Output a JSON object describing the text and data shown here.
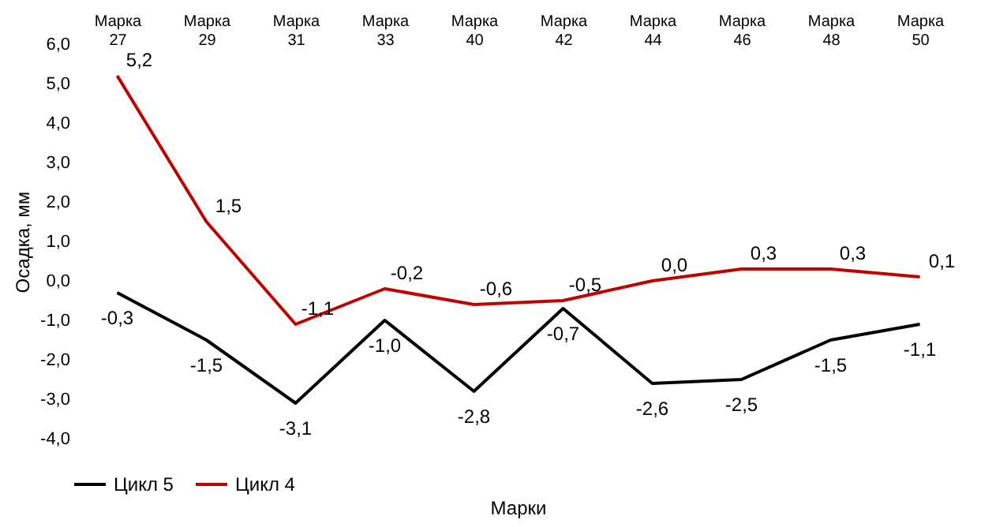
{
  "chart_data": {
    "type": "line",
    "xlabel": "Марки",
    "ylabel": "Осадка, мм",
    "categories": [
      "Марка 27",
      "Марка 29",
      "Марка 31",
      "Марка 33",
      "Марка 40",
      "Марка 42",
      "Марка 44",
      "Марка 46",
      "Марка 48",
      "Марка 50"
    ],
    "series": [
      {
        "name": "Цикл 5",
        "color": "#000000",
        "values": [
          -0.3,
          -1.5,
          -3.1,
          -1.0,
          -2.8,
          -0.7,
          -2.6,
          -2.5,
          -1.5,
          -1.1
        ],
        "value_labels": [
          "-0,3",
          "-1,5",
          "-3,1",
          "-1,0",
          "-2,8",
          "-0,7",
          "-2,6",
          "-2,5",
          "-1,5",
          "-1,1"
        ]
      },
      {
        "name": "Цикл 4",
        "color": "#c00000",
        "values": [
          5.2,
          1.5,
          -1.1,
          -0.2,
          -0.6,
          -0.5,
          0.0,
          0.3,
          0.3,
          0.1
        ],
        "value_labels": [
          "5,2",
          "1,5",
          "-1,1",
          "-0,2",
          "-0,6",
          "-0,5",
          "0,0",
          "0,3",
          "0,3",
          "0,1"
        ]
      }
    ],
    "ylim": [
      -4,
      6
    ],
    "yticks": [
      {
        "value": -4,
        "label": "-4,0"
      },
      {
        "value": -3,
        "label": "-3,0"
      },
      {
        "value": -2,
        "label": "-2,0"
      },
      {
        "value": -1,
        "label": "-1,0"
      },
      {
        "value": 0,
        "label": "0,0"
      },
      {
        "value": 1,
        "label": "1,0"
      },
      {
        "value": 2,
        "label": "2,0"
      },
      {
        "value": 3,
        "label": "3,0"
      },
      {
        "value": 4,
        "label": "4,0"
      },
      {
        "value": 5,
        "label": "5,0"
      },
      {
        "value": 6,
        "label": "6,0"
      }
    ],
    "grid": false,
    "legend": "bottom",
    "marker": "none",
    "line_style": "solid"
  }
}
